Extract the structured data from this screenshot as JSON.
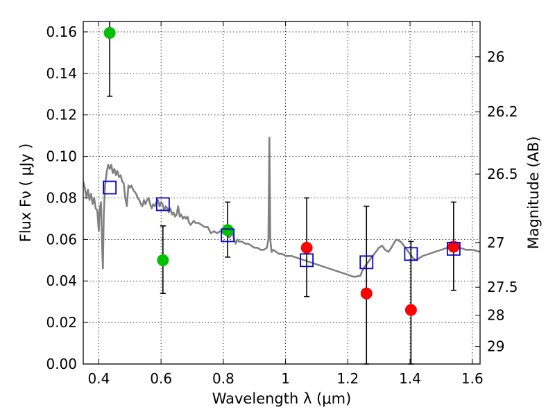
{
  "chart_data": {
    "type": "scatter",
    "xlabel": "Wavelength  λ (μm)",
    "ylabel": "Flux  Fν  ( μJy )",
    "y2label": "Magnitude (AB)",
    "xlim": [
      0.35,
      1.625
    ],
    "ylim": [
      0.0,
      0.165
    ],
    "grid": true,
    "x_ticks": [
      {
        "value": 0.4,
        "label": "0.4"
      },
      {
        "value": 0.6,
        "label": "0.6"
      },
      {
        "value": 0.8,
        "label": "0.8"
      },
      {
        "value": 1.0,
        "label": "1"
      },
      {
        "value": 1.2,
        "label": "1.2"
      },
      {
        "value": 1.4,
        "label": "1.4"
      },
      {
        "value": 1.6,
        "label": "1.6"
      }
    ],
    "y_ticks": [
      {
        "value": 0.0,
        "label": "0.00"
      },
      {
        "value": 0.02,
        "label": "0.02"
      },
      {
        "value": 0.04,
        "label": "0.04"
      },
      {
        "value": 0.06,
        "label": "0.06"
      },
      {
        "value": 0.08,
        "label": "0.08"
      },
      {
        "value": 0.1,
        "label": "0.10"
      },
      {
        "value": 0.12,
        "label": "0.12"
      },
      {
        "value": 0.14,
        "label": "0.14"
      },
      {
        "value": 0.16,
        "label": "0.16"
      }
    ],
    "y2_ticks": [
      {
        "flux": 0.148,
        "label": "26"
      },
      {
        "flux": 0.1215,
        "label": "26.2"
      },
      {
        "flux": 0.0915,
        "label": "26.5"
      },
      {
        "flux": 0.0585,
        "label": "27"
      },
      {
        "flux": 0.037,
        "label": "27.5"
      },
      {
        "flux": 0.0235,
        "label": "28"
      },
      {
        "flux": 0.0085,
        "label": "29"
      }
    ],
    "series": [
      {
        "marker": "circle",
        "color": "#00c000",
        "points": [
          {
            "x": 0.435,
            "y": 0.1595,
            "ylo": 0.129,
            "yhi": 0.168
          },
          {
            "x": 0.606,
            "y": 0.05,
            "ylo": 0.034,
            "yhi": 0.0665
          },
          {
            "x": 0.814,
            "y": 0.0645,
            "ylo": 0.0515,
            "yhi": 0.078
          }
        ]
      },
      {
        "marker": "circle",
        "color": "#ff0000",
        "points": [
          {
            "x": 1.068,
            "y": 0.056,
            "ylo": 0.0325,
            "yhi": 0.08
          },
          {
            "x": 1.26,
            "y": 0.034,
            "ylo": 0.0,
            "yhi": 0.076
          },
          {
            "x": 1.403,
            "y": 0.026,
            "ylo": 0.0,
            "yhi": 0.059
          },
          {
            "x": 1.54,
            "y": 0.0565,
            "ylo": 0.0355,
            "yhi": 0.078
          }
        ]
      },
      {
        "marker": "square",
        "color": "#0000cc",
        "points": [
          {
            "x": 0.435,
            "y": 0.085
          },
          {
            "x": 0.606,
            "y": 0.077
          },
          {
            "x": 0.814,
            "y": 0.062
          },
          {
            "x": 1.068,
            "y": 0.05
          },
          {
            "x": 1.26,
            "y": 0.049
          },
          {
            "x": 1.403,
            "y": 0.053
          },
          {
            "x": 1.54,
            "y": 0.0555
          }
        ]
      }
    ],
    "model_spectrum": {
      "color": "#808080",
      "points": [
        [
          0.35,
          0.088
        ],
        [
          0.355,
          0.085
        ],
        [
          0.36,
          0.08
        ],
        [
          0.365,
          0.084
        ],
        [
          0.37,
          0.079
        ],
        [
          0.375,
          0.082
        ],
        [
          0.38,
          0.077
        ],
        [
          0.385,
          0.08
        ],
        [
          0.39,
          0.075
        ],
        [
          0.395,
          0.074
        ],
        [
          0.4,
          0.064
        ],
        [
          0.403,
          0.075
        ],
        [
          0.407,
          0.078
        ],
        [
          0.41,
          0.06
        ],
        [
          0.413,
          0.046
        ],
        [
          0.416,
          0.072
        ],
        [
          0.42,
          0.086
        ],
        [
          0.425,
          0.092
        ],
        [
          0.43,
          0.096
        ],
        [
          0.435,
          0.094
        ],
        [
          0.44,
          0.096
        ],
        [
          0.445,
          0.092
        ],
        [
          0.45,
          0.094
        ],
        [
          0.455,
          0.091
        ],
        [
          0.46,
          0.093
        ],
        [
          0.465,
          0.09
        ],
        [
          0.47,
          0.091
        ],
        [
          0.475,
          0.088
        ],
        [
          0.48,
          0.087
        ],
        [
          0.485,
          0.08
        ],
        [
          0.49,
          0.076
        ],
        [
          0.495,
          0.086
        ],
        [
          0.5,
          0.085
        ],
        [
          0.505,
          0.086
        ],
        [
          0.51,
          0.084
        ],
        [
          0.515,
          0.083
        ],
        [
          0.52,
          0.082
        ],
        [
          0.525,
          0.08
        ],
        [
          0.53,
          0.079
        ],
        [
          0.535,
          0.077
        ],
        [
          0.54,
          0.076
        ],
        [
          0.545,
          0.079
        ],
        [
          0.55,
          0.077
        ],
        [
          0.555,
          0.079
        ],
        [
          0.56,
          0.08
        ],
        [
          0.565,
          0.077
        ],
        [
          0.57,
          0.075
        ],
        [
          0.575,
          0.077
        ],
        [
          0.58,
          0.076
        ],
        [
          0.585,
          0.078
        ],
        [
          0.59,
          0.079
        ],
        [
          0.595,
          0.076
        ],
        [
          0.6,
          0.078
        ],
        [
          0.605,
          0.077
        ],
        [
          0.61,
          0.074
        ],
        [
          0.615,
          0.076
        ],
        [
          0.62,
          0.075
        ],
        [
          0.625,
          0.073
        ],
        [
          0.63,
          0.075
        ],
        [
          0.635,
          0.072
        ],
        [
          0.64,
          0.073
        ],
        [
          0.645,
          0.071
        ],
        [
          0.65,
          0.072
        ],
        [
          0.655,
          0.076
        ],
        [
          0.66,
          0.071
        ],
        [
          0.665,
          0.072
        ],
        [
          0.67,
          0.07
        ],
        [
          0.675,
          0.071
        ],
        [
          0.68,
          0.07
        ],
        [
          0.685,
          0.071
        ],
        [
          0.69,
          0.068
        ],
        [
          0.695,
          0.067
        ],
        [
          0.7,
          0.068
        ],
        [
          0.705,
          0.069
        ],
        [
          0.71,
          0.068
        ],
        [
          0.72,
          0.068
        ],
        [
          0.73,
          0.067
        ],
        [
          0.74,
          0.066
        ],
        [
          0.75,
          0.066
        ],
        [
          0.76,
          0.063
        ],
        [
          0.77,
          0.064
        ],
        [
          0.78,
          0.063
        ],
        [
          0.79,
          0.064
        ],
        [
          0.8,
          0.063
        ],
        [
          0.81,
          0.062
        ],
        [
          0.82,
          0.061
        ],
        [
          0.83,
          0.063
        ],
        [
          0.835,
          0.06
        ],
        [
          0.84,
          0.058
        ],
        [
          0.845,
          0.06
        ],
        [
          0.85,
          0.059
        ],
        [
          0.86,
          0.059
        ],
        [
          0.87,
          0.058
        ],
        [
          0.88,
          0.058
        ],
        [
          0.89,
          0.057
        ],
        [
          0.9,
          0.056
        ],
        [
          0.91,
          0.056
        ],
        [
          0.92,
          0.055
        ],
        [
          0.93,
          0.055
        ],
        [
          0.94,
          0.056
        ],
        [
          0.945,
          0.06
        ],
        [
          0.948,
          0.109
        ],
        [
          0.951,
          0.06
        ],
        [
          0.955,
          0.054
        ],
        [
          0.96,
          0.055
        ],
        [
          0.97,
          0.054
        ],
        [
          0.98,
          0.053
        ],
        [
          0.99,
          0.053
        ],
        [
          1.0,
          0.052
        ],
        [
          1.02,
          0.052
        ],
        [
          1.04,
          0.051
        ],
        [
          1.06,
          0.05
        ],
        [
          1.08,
          0.049
        ],
        [
          1.1,
          0.048
        ],
        [
          1.12,
          0.047
        ],
        [
          1.14,
          0.046
        ],
        [
          1.16,
          0.045
        ],
        [
          1.18,
          0.044
        ],
        [
          1.2,
          0.043
        ],
        [
          1.22,
          0.042
        ],
        [
          1.24,
          0.0425
        ],
        [
          1.25,
          0.046
        ],
        [
          1.27,
          0.05
        ],
        [
          1.29,
          0.054
        ],
        [
          1.3,
          0.056
        ],
        [
          1.31,
          0.057
        ],
        [
          1.32,
          0.055
        ],
        [
          1.33,
          0.054
        ],
        [
          1.34,
          0.056
        ],
        [
          1.355,
          0.06
        ],
        [
          1.37,
          0.059
        ],
        [
          1.38,
          0.057
        ],
        [
          1.39,
          0.055
        ],
        [
          1.4,
          0.053
        ],
        [
          1.41,
          0.051
        ],
        [
          1.42,
          0.05
        ],
        [
          1.43,
          0.051
        ],
        [
          1.44,
          0.052
        ],
        [
          1.46,
          0.053
        ],
        [
          1.48,
          0.054
        ],
        [
          1.5,
          0.055
        ],
        [
          1.52,
          0.056
        ],
        [
          1.54,
          0.057
        ],
        [
          1.56,
          0.056
        ],
        [
          1.58,
          0.055
        ],
        [
          1.6,
          0.055
        ],
        [
          1.625,
          0.054
        ]
      ]
    }
  }
}
